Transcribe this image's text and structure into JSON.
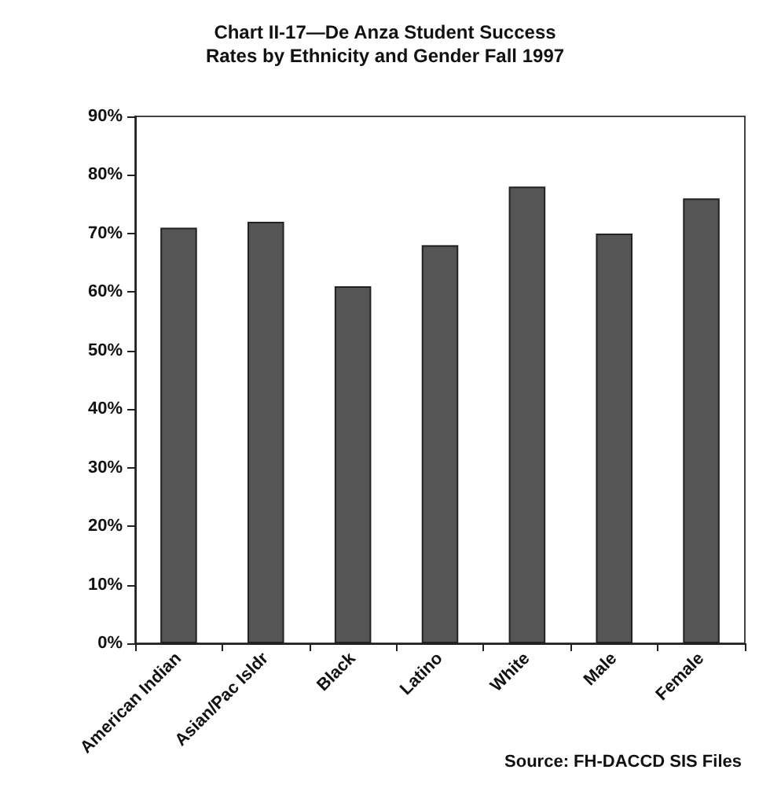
{
  "chart_data": {
    "type": "bar",
    "title": "Chart II-17—De Anza Student Success\nRates by Ethnicity and Gender Fall 1997",
    "categories": [
      "American Indian",
      "Asian/Pac Isldr",
      "Black",
      "Latino",
      "White",
      "Male",
      "Female"
    ],
    "values": [
      71,
      72,
      61,
      68,
      78,
      70,
      76
    ],
    "color": "#555555",
    "ylim": [
      0,
      90
    ],
    "yticks": [
      {
        "value": 0,
        "label": "0%"
      },
      {
        "value": 10,
        "label": "10%"
      },
      {
        "value": 20,
        "label": "20%"
      },
      {
        "value": 30,
        "label": "30%"
      },
      {
        "value": 40,
        "label": "40%"
      },
      {
        "value": 50,
        "label": "50%"
      },
      {
        "value": 60,
        "label": "60%"
      },
      {
        "value": 70,
        "label": "70%"
      },
      {
        "value": 80,
        "label": "80%"
      },
      {
        "value": 90,
        "label": "90%"
      }
    ],
    "grid": false,
    "annotations": [
      "Source: FH-DACCD SIS Files"
    ]
  }
}
